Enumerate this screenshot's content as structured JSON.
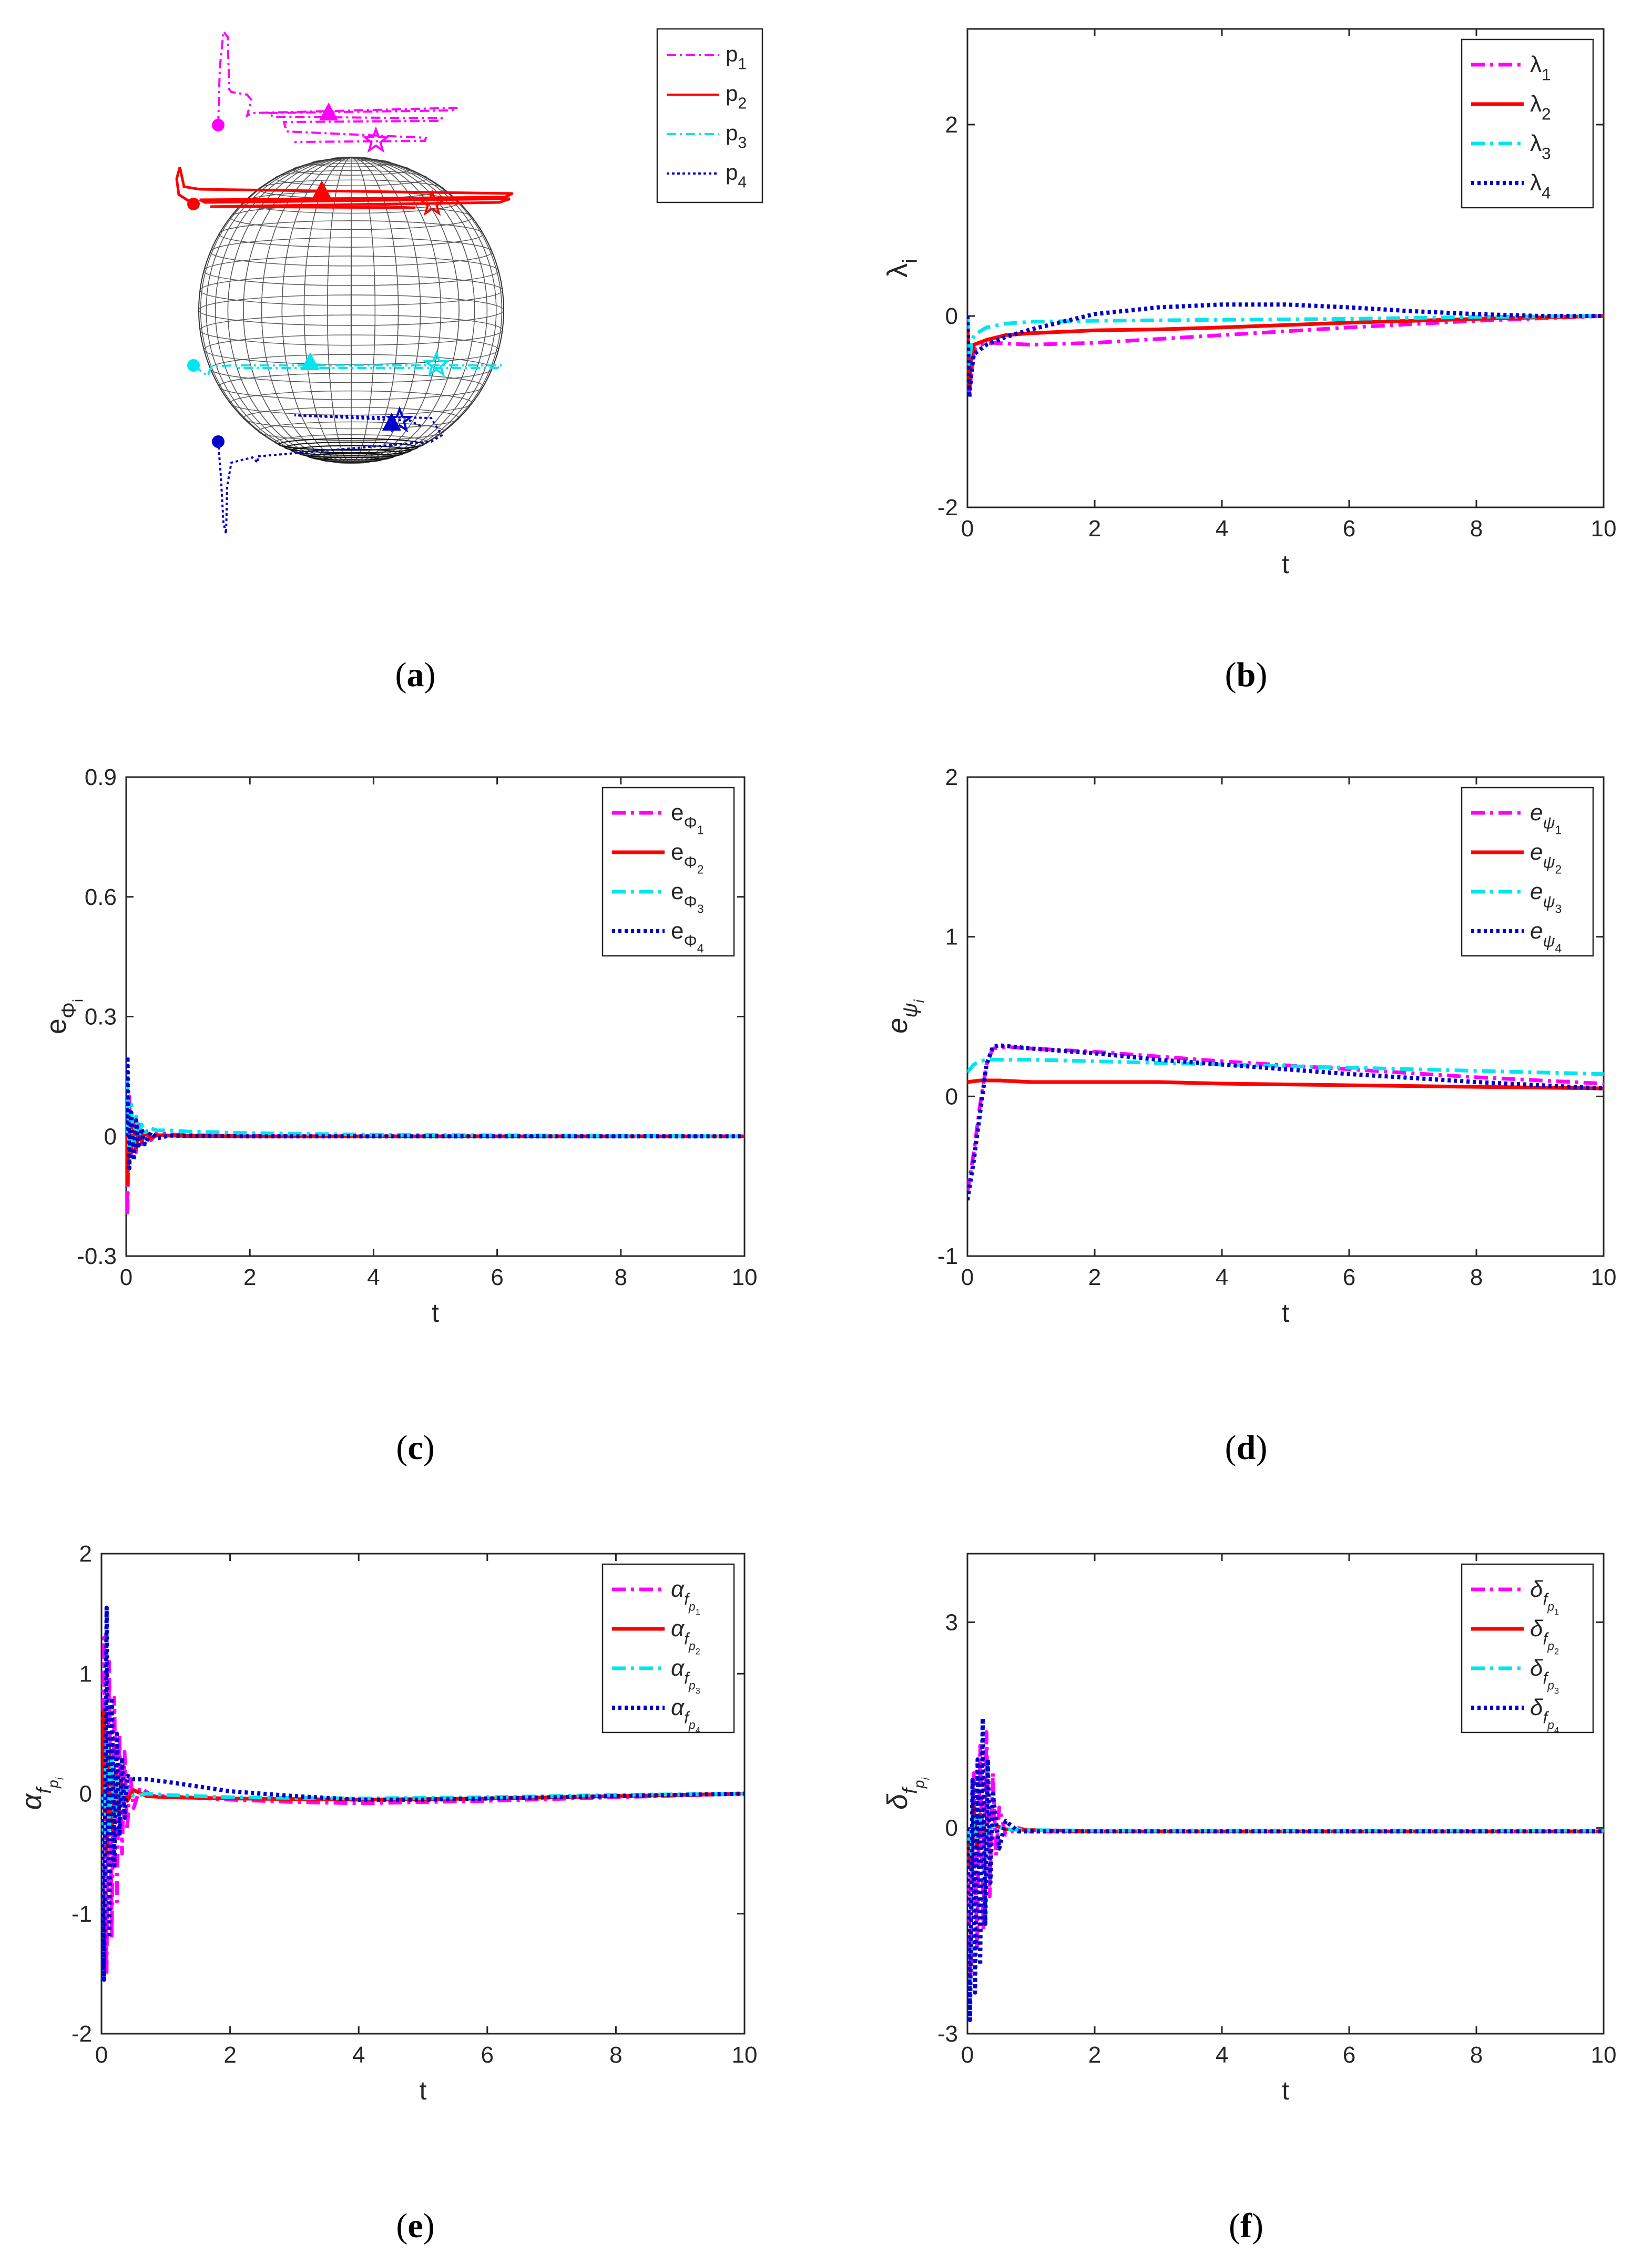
{
  "chart_data": [
    {
      "id": "a",
      "type": "line",
      "caption": "a",
      "title": "",
      "xlabel": "",
      "ylabel": "",
      "legend_position": "top-right",
      "legend": [
        {
          "sub": "1",
          "label": "p",
          "color": "#ff00ff",
          "style": "dashdot"
        },
        {
          "sub": "2",
          "label": "p",
          "color": "#ff0000",
          "style": "solid"
        },
        {
          "sub": "3",
          "label": "p",
          "color": "#00e5ee",
          "style": "dashdot"
        },
        {
          "sub": "4",
          "label": "p",
          "color": "#0000cd",
          "style": "dotted"
        }
      ],
      "note": "3D trajectories of four points approaching latitude circles on a sphere"
    },
    {
      "id": "b",
      "type": "line",
      "caption": "b",
      "xlabel": "t",
      "ylabel": "λ",
      "ylabel_sub": "i",
      "xlim": [
        0,
        10
      ],
      "ylim": [
        -2,
        3
      ],
      "xticks": [
        "0",
        "2",
        "4",
        "6",
        "8",
        "10"
      ],
      "yticks": [
        "-2",
        "0",
        "2"
      ],
      "legend_position": "top-right",
      "series": [
        {
          "label": "λ",
          "sub": "1",
          "color": "#ff00ff",
          "style": "dashdot",
          "x": [
            0,
            0.03,
            0.06,
            0.1,
            0.2,
            0.4,
            1,
            2,
            4,
            6,
            8,
            10
          ],
          "y": [
            0,
            -0.8,
            -0.6,
            -0.35,
            -0.3,
            -0.28,
            -0.3,
            -0.28,
            -0.2,
            -0.12,
            -0.05,
            0
          ]
        },
        {
          "label": "λ",
          "sub": "2",
          "color": "#ff0000",
          "style": "solid",
          "x": [
            0,
            0.03,
            0.06,
            0.1,
            0.3,
            0.6,
            1,
            2,
            3,
            4,
            6,
            8,
            10
          ],
          "y": [
            0,
            -0.75,
            -0.45,
            -0.3,
            -0.25,
            -0.2,
            -0.18,
            -0.15,
            -0.14,
            -0.12,
            -0.07,
            -0.03,
            0
          ]
        },
        {
          "label": "λ",
          "sub": "3",
          "color": "#00e5ee",
          "style": "dashdot",
          "x": [
            0,
            0.03,
            0.06,
            0.1,
            0.3,
            0.6,
            1,
            2,
            4,
            6,
            8,
            10
          ],
          "y": [
            0,
            -0.5,
            -0.3,
            -0.2,
            -0.12,
            -0.08,
            -0.06,
            -0.05,
            -0.04,
            -0.03,
            -0.01,
            0
          ]
        },
        {
          "label": "λ",
          "sub": "4",
          "color": "#0000cd",
          "style": "dotted",
          "x": [
            0,
            0.03,
            0.06,
            0.1,
            0.3,
            0.6,
            1,
            1.5,
            2,
            3,
            4,
            5,
            6,
            7,
            8,
            9,
            10
          ],
          "y": [
            0,
            -0.85,
            -0.6,
            -0.4,
            -0.3,
            -0.22,
            -0.14,
            -0.06,
            0.02,
            0.09,
            0.12,
            0.12,
            0.09,
            0.05,
            0.02,
            0,
            0
          ]
        }
      ]
    },
    {
      "id": "c",
      "type": "line",
      "caption": "c",
      "xlabel": "t",
      "ylabel": "e",
      "ylabel_sub": "Φ",
      "ylabel_subsub": "i",
      "xlim": [
        0,
        10
      ],
      "ylim": [
        -0.3,
        0.9
      ],
      "xticks": [
        "0",
        "2",
        "4",
        "6",
        "8",
        "10"
      ],
      "yticks": [
        "-0.3",
        "0",
        "0.3",
        "0.6",
        "0.9"
      ],
      "legend_position": "top-right",
      "series": [
        {
          "label": "e",
          "sub": "Φ",
          "subsub": "1",
          "color": "#ff00ff",
          "style": "dashdot",
          "x": [
            0,
            0.02,
            0.05,
            0.08,
            0.12,
            0.16,
            0.2,
            0.25,
            0.3,
            0.4,
            0.5,
            0.7,
            1,
            2,
            4,
            10
          ],
          "y": [
            0,
            -0.2,
            0.1,
            -0.05,
            0.05,
            -0.04,
            0.03,
            -0.02,
            0.02,
            -0.01,
            0.01,
            0.005,
            0.003,
            0.001,
            0,
            0
          ]
        },
        {
          "label": "e",
          "sub": "Φ",
          "subsub": "2",
          "color": "#ff0000",
          "style": "solid",
          "x": [
            0,
            0.02,
            0.05,
            0.08,
            0.12,
            0.16,
            0.2,
            0.25,
            0.3,
            0.4,
            0.5,
            0.7,
            1,
            2,
            10
          ],
          "y": [
            0,
            -0.12,
            0.06,
            -0.04,
            0.04,
            -0.03,
            0.02,
            -0.015,
            0.01,
            -0.005,
            0.003,
            0.002,
            0.001,
            0,
            0
          ]
        },
        {
          "label": "e",
          "sub": "Φ",
          "subsub": "3",
          "color": "#00e5ee",
          "style": "dashdot",
          "x": [
            0,
            0.02,
            0.05,
            0.08,
            0.12,
            0.16,
            0.2,
            0.25,
            0.3,
            0.4,
            0.5,
            0.7,
            1,
            2,
            4,
            10
          ],
          "y": [
            0,
            0.14,
            -0.05,
            0.08,
            -0.02,
            0.05,
            0,
            0.03,
            0.01,
            0.02,
            0.015,
            0.015,
            0.012,
            0.008,
            0.004,
            0
          ]
        },
        {
          "label": "e",
          "sub": "Φ",
          "subsub": "4",
          "color": "#0000cd",
          "style": "dotted",
          "x": [
            0,
            0.02,
            0.05,
            0.08,
            0.12,
            0.16,
            0.2,
            0.25,
            0.3,
            0.4,
            0.5,
            0.7,
            1,
            2,
            10
          ],
          "y": [
            0,
            0.2,
            -0.08,
            0.06,
            -0.06,
            0.04,
            -0.03,
            0.02,
            -0.02,
            0.01,
            -0.005,
            0.002,
            0.001,
            0,
            0
          ]
        }
      ]
    },
    {
      "id": "d",
      "type": "line",
      "caption": "d",
      "xlabel": "t",
      "ylabel": "e",
      "ylabel_sub": "ψ",
      "ylabel_subsub": "i",
      "xlim": [
        0,
        10
      ],
      "ylim": [
        -1,
        2
      ],
      "xticks": [
        "0",
        "2",
        "4",
        "6",
        "8",
        "10"
      ],
      "yticks": [
        "-1",
        "0",
        "1",
        "2"
      ],
      "legend_position": "top-right",
      "series": [
        {
          "label": "e",
          "sub": "ψ",
          "subsub": "1",
          "color": "#ff00ff",
          "style": "dashdot",
          "x": [
            0,
            0.1,
            0.2,
            0.3,
            0.4,
            0.6,
            1,
            2,
            3,
            4,
            6,
            8,
            10
          ],
          "y": [
            -0.6,
            -0.35,
            -0.05,
            0.2,
            0.3,
            0.31,
            0.3,
            0.28,
            0.25,
            0.22,
            0.17,
            0.12,
            0.08
          ]
        },
        {
          "label": "e",
          "sub": "ψ",
          "subsub": "2",
          "color": "#ff0000",
          "style": "solid",
          "x": [
            0,
            0.2,
            0.5,
            1,
            2,
            3,
            4,
            6,
            8,
            10
          ],
          "y": [
            0.09,
            0.1,
            0.1,
            0.09,
            0.09,
            0.09,
            0.08,
            0.07,
            0.06,
            0.05
          ]
        },
        {
          "label": "e",
          "sub": "ψ",
          "subsub": "3",
          "color": "#00e5ee",
          "style": "dashdot",
          "x": [
            0,
            0.1,
            0.2,
            0.3,
            0.5,
            1,
            2,
            3,
            4,
            6,
            8,
            10
          ],
          "y": [
            0.15,
            0.2,
            0.22,
            0.23,
            0.23,
            0.23,
            0.22,
            0.21,
            0.2,
            0.18,
            0.16,
            0.14
          ]
        },
        {
          "label": "e",
          "sub": "ψ",
          "subsub": "4",
          "color": "#0000cd",
          "style": "dotted",
          "x": [
            0,
            0.1,
            0.2,
            0.3,
            0.4,
            0.5,
            1,
            2,
            3,
            4,
            6,
            8,
            10
          ],
          "y": [
            -0.65,
            -0.4,
            -0.1,
            0.2,
            0.31,
            0.32,
            0.3,
            0.27,
            0.23,
            0.2,
            0.14,
            0.09,
            0.05
          ]
        }
      ]
    },
    {
      "id": "e",
      "type": "line",
      "caption": "e",
      "xlabel": "t",
      "ylabel": "α",
      "ylabel_sub": "f",
      "ylabel_subsub": "p",
      "ylabel_subsubsub": "i",
      "xlim": [
        0,
        10
      ],
      "ylim": [
        -2,
        2
      ],
      "xticks": [
        "0",
        "2",
        "4",
        "6",
        "8",
        "10"
      ],
      "yticks": [
        "-2",
        "-1",
        "0",
        "1",
        "2"
      ],
      "legend_position": "top-right",
      "series": [
        {
          "label": "α",
          "sub": "f",
          "subsub": "p",
          "subsubsub": "1",
          "color": "#ff00ff",
          "style": "dashdot",
          "x": [
            0,
            0.04,
            0.08,
            0.12,
            0.16,
            0.2,
            0.24,
            0.28,
            0.32,
            0.36,
            0.4,
            0.45,
            0.5,
            0.6,
            0.8,
            1,
            2,
            3,
            4,
            6,
            8,
            10
          ],
          "y": [
            0,
            1.3,
            -1.5,
            1.1,
            -1.2,
            0.8,
            -0.9,
            0.5,
            -0.5,
            0.35,
            -0.3,
            0.15,
            -0.12,
            0.05,
            -0.02,
            -0.02,
            -0.05,
            -0.07,
            -0.08,
            -0.06,
            -0.03,
            0
          ]
        },
        {
          "label": "α",
          "sub": "f",
          "subsub": "p",
          "subsubsub": "2",
          "color": "#ff0000",
          "style": "solid",
          "x": [
            0,
            0.04,
            0.08,
            0.12,
            0.16,
            0.2,
            0.25,
            0.3,
            0.4,
            0.5,
            0.7,
            1,
            2,
            4,
            6,
            8,
            10
          ],
          "y": [
            0,
            0.7,
            -0.5,
            0.4,
            -0.3,
            0.2,
            -0.15,
            0.1,
            -0.06,
            0.03,
            -0.02,
            -0.03,
            -0.04,
            -0.05,
            -0.04,
            -0.02,
            0
          ]
        },
        {
          "label": "α",
          "sub": "f",
          "subsub": "p",
          "subsubsub": "3",
          "color": "#00e5ee",
          "style": "dashdot",
          "x": [
            0,
            0.04,
            0.08,
            0.12,
            0.16,
            0.2,
            0.25,
            0.3,
            0.4,
            0.5,
            0.7,
            1,
            2,
            4,
            6,
            8,
            10
          ],
          "y": [
            0,
            -0.4,
            0.5,
            -0.3,
            0.3,
            -0.2,
            0.15,
            -0.1,
            0.05,
            -0.02,
            0,
            -0.01,
            -0.03,
            -0.04,
            -0.03,
            -0.01,
            0
          ]
        },
        {
          "label": "α",
          "sub": "f",
          "subsub": "p",
          "subsubsub": "4",
          "color": "#0000cd",
          "style": "dotted",
          "x": [
            0,
            0.04,
            0.08,
            0.12,
            0.16,
            0.2,
            0.24,
            0.28,
            0.32,
            0.36,
            0.4,
            0.5,
            0.7,
            1,
            1.5,
            2,
            3,
            4,
            5,
            6,
            8,
            10
          ],
          "y": [
            0,
            -1.55,
            1.55,
            -1.2,
            0.8,
            -0.6,
            0.5,
            -0.35,
            0.3,
            -0.2,
            0.15,
            0.12,
            0.12,
            0.1,
            0.06,
            0.02,
            -0.02,
            -0.05,
            -0.05,
            -0.04,
            -0.02,
            0
          ]
        }
      ]
    },
    {
      "id": "f",
      "type": "line",
      "caption": "f",
      "xlabel": "t",
      "ylabel": "δ",
      "ylabel_sub": "f",
      "ylabel_subsub": "p",
      "ylabel_subsubsub": "i",
      "xlim": [
        0,
        10
      ],
      "ylim": [
        -3,
        4
      ],
      "xticks": [
        "0",
        "2",
        "4",
        "6",
        "8",
        "10"
      ],
      "yticks": [
        "-3",
        "0",
        "3"
      ],
      "legend_position": "top-right",
      "series": [
        {
          "label": "δ",
          "sub": "f",
          "subsub": "p",
          "subsubsub": "1",
          "color": "#ff00ff",
          "style": "dashdot",
          "x": [
            0,
            0.05,
            0.1,
            0.15,
            0.2,
            0.25,
            0.3,
            0.35,
            0.4,
            0.45,
            0.5,
            0.6,
            0.8,
            1,
            2,
            10
          ],
          "y": [
            0,
            -2.2,
            0.8,
            -1.8,
            1.2,
            -1.5,
            1.4,
            -1.0,
            0.8,
            -0.4,
            0.3,
            -0.1,
            0,
            -0.05,
            -0.05,
            -0.05
          ]
        },
        {
          "label": "δ",
          "sub": "f",
          "subsub": "p",
          "subsubsub": "2",
          "color": "#ff0000",
          "style": "solid",
          "x": [
            0,
            0.05,
            0.1,
            0.15,
            0.2,
            0.3,
            0.4,
            0.6,
            1,
            2,
            10
          ],
          "y": [
            0,
            -0.6,
            0.3,
            -0.3,
            0.2,
            -0.1,
            0.05,
            -0.02,
            -0.03,
            -0.05,
            -0.05
          ]
        },
        {
          "label": "δ",
          "sub": "f",
          "subsub": "p",
          "subsubsub": "3",
          "color": "#00e5ee",
          "style": "dashdot",
          "x": [
            0,
            0.05,
            0.1,
            0.15,
            0.2,
            0.3,
            0.4,
            0.6,
            1,
            2,
            10
          ],
          "y": [
            0,
            -0.4,
            0.2,
            -0.2,
            0.15,
            -0.08,
            0.04,
            -0.02,
            -0.03,
            -0.04,
            -0.04
          ]
        },
        {
          "label": "δ",
          "sub": "f",
          "subsub": "p",
          "subsubsub": "4",
          "color": "#0000cd",
          "style": "dotted",
          "x": [
            0,
            0.04,
            0.08,
            0.12,
            0.16,
            0.2,
            0.24,
            0.28,
            0.32,
            0.36,
            0.4,
            0.5,
            0.6,
            0.8,
            1,
            2,
            10
          ],
          "y": [
            0,
            -2.8,
            0.7,
            -2.4,
            1.0,
            -2.0,
            1.6,
            -1.4,
            1.0,
            -0.8,
            0.5,
            -0.3,
            0.1,
            -0.05,
            -0.05,
            -0.05,
            -0.05
          ]
        }
      ]
    }
  ]
}
